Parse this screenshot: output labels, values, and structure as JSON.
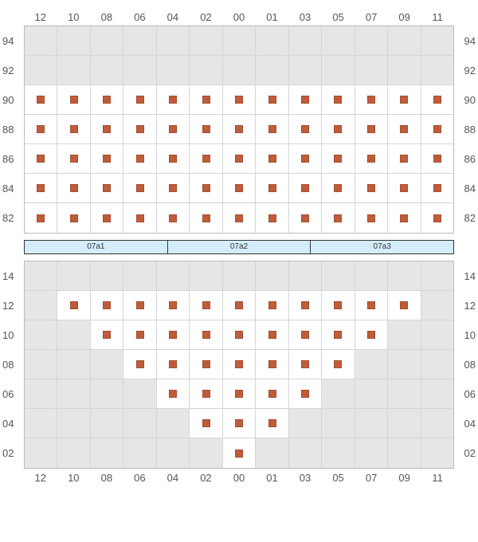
{
  "columns": [
    "12",
    "10",
    "08",
    "06",
    "04",
    "02",
    "00",
    "01",
    "03",
    "05",
    "07",
    "09",
    "11"
  ],
  "seat_color": "#c05c3a",
  "cell_empty_bg": "#e6e6e6",
  "cell_active_bg": "#ffffff",
  "grid_border": "#d5d5d5",
  "outer_border": "#bbbbbb",
  "label_color": "#555555",
  "stage_bg": "#d4edfb",
  "stage_border": "#333333",
  "top_section": {
    "rows": [
      {
        "label": "94",
        "cells": [
          0,
          0,
          0,
          0,
          0,
          0,
          0,
          0,
          0,
          0,
          0,
          0,
          0
        ]
      },
      {
        "label": "92",
        "cells": [
          0,
          0,
          0,
          0,
          0,
          0,
          0,
          0,
          0,
          0,
          0,
          0,
          0
        ]
      },
      {
        "label": "90",
        "cells": [
          1,
          1,
          1,
          1,
          1,
          1,
          1,
          1,
          1,
          1,
          1,
          1,
          1
        ]
      },
      {
        "label": "88",
        "cells": [
          1,
          1,
          1,
          1,
          1,
          1,
          1,
          1,
          1,
          1,
          1,
          1,
          1
        ]
      },
      {
        "label": "86",
        "cells": [
          1,
          1,
          1,
          1,
          1,
          1,
          1,
          1,
          1,
          1,
          1,
          1,
          1
        ]
      },
      {
        "label": "84",
        "cells": [
          1,
          1,
          1,
          1,
          1,
          1,
          1,
          1,
          1,
          1,
          1,
          1,
          1
        ]
      },
      {
        "label": "82",
        "cells": [
          1,
          1,
          1,
          1,
          1,
          1,
          1,
          1,
          1,
          1,
          1,
          1,
          1
        ]
      }
    ]
  },
  "stage_segments": [
    "07a1",
    "07a2",
    "07a3"
  ],
  "bottom_section": {
    "rows": [
      {
        "label": "14",
        "cells": [
          0,
          0,
          0,
          0,
          0,
          0,
          0,
          0,
          0,
          0,
          0,
          0,
          0
        ]
      },
      {
        "label": "12",
        "cells": [
          0,
          1,
          1,
          1,
          1,
          1,
          1,
          1,
          1,
          1,
          1,
          1,
          0
        ]
      },
      {
        "label": "10",
        "cells": [
          0,
          0,
          1,
          1,
          1,
          1,
          1,
          1,
          1,
          1,
          1,
          0,
          0
        ]
      },
      {
        "label": "08",
        "cells": [
          0,
          0,
          0,
          1,
          1,
          1,
          1,
          1,
          1,
          1,
          0,
          0,
          0
        ]
      },
      {
        "label": "06",
        "cells": [
          0,
          0,
          0,
          0,
          1,
          1,
          1,
          1,
          1,
          0,
          0,
          0,
          0
        ]
      },
      {
        "label": "04",
        "cells": [
          0,
          0,
          0,
          0,
          0,
          1,
          1,
          1,
          0,
          0,
          0,
          0,
          0
        ]
      },
      {
        "label": "02",
        "cells": [
          0,
          0,
          0,
          0,
          0,
          0,
          1,
          0,
          0,
          0,
          0,
          0,
          0
        ]
      }
    ]
  }
}
